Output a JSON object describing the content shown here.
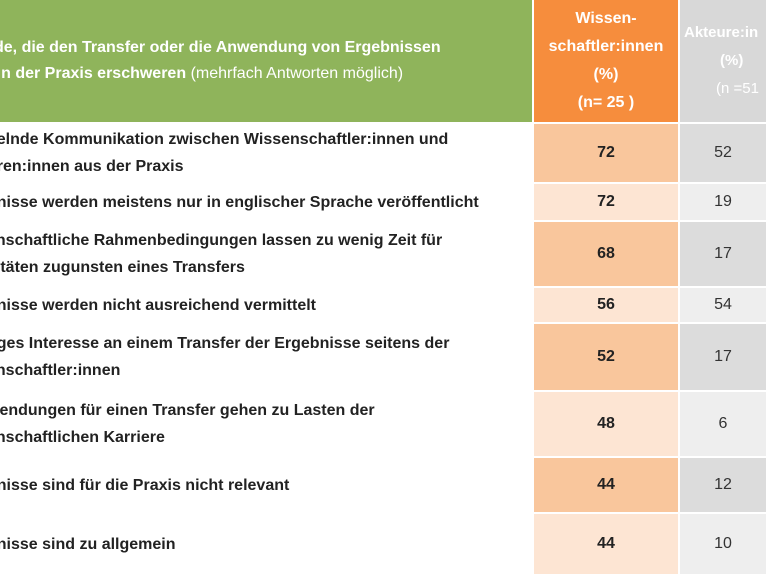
{
  "header": {
    "statement_title_bold": "tände, die den Transfer oder die Anwendung von Ergebnissen\nBE in der Praxis erschweren",
    "statement_title_note": "(mehrfach Antworten möglich)",
    "col_w_line1": "Wissen-",
    "col_w_line2": "schaftler:innen",
    "col_w_line3": "(%)",
    "col_w_line4": "(n= 25 )",
    "col_a_line1": "Akteure:in",
    "col_a_line2": "(%)",
    "col_a_line3": "(n =51"
  },
  "rows": [
    {
      "statement": "gelnde Kommunikation zwischen Wissenschaftler:innen und\nuren:innen aus der Praxis",
      "w": "72",
      "a": "52"
    },
    {
      "statement": "bnisse werden meistens nur in englischer Sprache veröffentlicht",
      "w": "72",
      "a": "19"
    },
    {
      "statement": "enschaftliche Rahmenbedingungen lassen zu wenig Zeit für\nvitäten zugunsten eines Transfers",
      "w": "68",
      "a": "17"
    },
    {
      "statement": "bnisse werden nicht ausreichend vermittelt",
      "w": "56",
      "a": "54"
    },
    {
      "statement": "nges Interesse an einem Transfer der Ergebnisse seitens der\nenschaftler:innen",
      "w": "52",
      "a": "17"
    },
    {
      "statement": "wendungen für einen Transfer gehen zu Lasten der\nenschaftlichen Karriere",
      "w": "48",
      "a": "6"
    },
    {
      "statement": "bnisse sind für die Praxis nicht relevant",
      "w": "44",
      "a": "12"
    },
    {
      "statement": "bnisse sind zu allgemein",
      "w": "44",
      "a": "10"
    }
  ]
}
